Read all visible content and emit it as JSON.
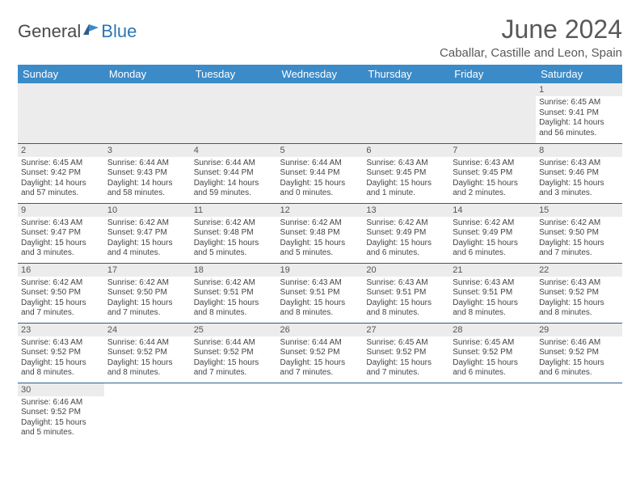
{
  "brand": {
    "text1": "General",
    "text2": "Blue"
  },
  "title": "June 2024",
  "location": "Caballar, Castille and Leon, Spain",
  "colors": {
    "header_bg": "#3b8bc9",
    "header_text": "#ffffff",
    "cell_border": "#2e5c8a",
    "daynum_bg": "#ececec",
    "title_color": "#595959",
    "logo_blue": "#2e75b6"
  },
  "weekdays": [
    "Sunday",
    "Monday",
    "Tuesday",
    "Wednesday",
    "Thursday",
    "Friday",
    "Saturday"
  ],
  "weeks": [
    [
      null,
      null,
      null,
      null,
      null,
      null,
      {
        "n": "1",
        "sr": "6:45 AM",
        "ss": "9:41 PM",
        "dl": "14 hours and 56 minutes."
      }
    ],
    [
      {
        "n": "2",
        "sr": "6:45 AM",
        "ss": "9:42 PM",
        "dl": "14 hours and 57 minutes."
      },
      {
        "n": "3",
        "sr": "6:44 AM",
        "ss": "9:43 PM",
        "dl": "14 hours and 58 minutes."
      },
      {
        "n": "4",
        "sr": "6:44 AM",
        "ss": "9:44 PM",
        "dl": "14 hours and 59 minutes."
      },
      {
        "n": "5",
        "sr": "6:44 AM",
        "ss": "9:44 PM",
        "dl": "15 hours and 0 minutes."
      },
      {
        "n": "6",
        "sr": "6:43 AM",
        "ss": "9:45 PM",
        "dl": "15 hours and 1 minute."
      },
      {
        "n": "7",
        "sr": "6:43 AM",
        "ss": "9:45 PM",
        "dl": "15 hours and 2 minutes."
      },
      {
        "n": "8",
        "sr": "6:43 AM",
        "ss": "9:46 PM",
        "dl": "15 hours and 3 minutes."
      }
    ],
    [
      {
        "n": "9",
        "sr": "6:43 AM",
        "ss": "9:47 PM",
        "dl": "15 hours and 3 minutes."
      },
      {
        "n": "10",
        "sr": "6:42 AM",
        "ss": "9:47 PM",
        "dl": "15 hours and 4 minutes."
      },
      {
        "n": "11",
        "sr": "6:42 AM",
        "ss": "9:48 PM",
        "dl": "15 hours and 5 minutes."
      },
      {
        "n": "12",
        "sr": "6:42 AM",
        "ss": "9:48 PM",
        "dl": "15 hours and 5 minutes."
      },
      {
        "n": "13",
        "sr": "6:42 AM",
        "ss": "9:49 PM",
        "dl": "15 hours and 6 minutes."
      },
      {
        "n": "14",
        "sr": "6:42 AM",
        "ss": "9:49 PM",
        "dl": "15 hours and 6 minutes."
      },
      {
        "n": "15",
        "sr": "6:42 AM",
        "ss": "9:50 PM",
        "dl": "15 hours and 7 minutes."
      }
    ],
    [
      {
        "n": "16",
        "sr": "6:42 AM",
        "ss": "9:50 PM",
        "dl": "15 hours and 7 minutes."
      },
      {
        "n": "17",
        "sr": "6:42 AM",
        "ss": "9:50 PM",
        "dl": "15 hours and 7 minutes."
      },
      {
        "n": "18",
        "sr": "6:42 AM",
        "ss": "9:51 PM",
        "dl": "15 hours and 8 minutes."
      },
      {
        "n": "19",
        "sr": "6:43 AM",
        "ss": "9:51 PM",
        "dl": "15 hours and 8 minutes."
      },
      {
        "n": "20",
        "sr": "6:43 AM",
        "ss": "9:51 PM",
        "dl": "15 hours and 8 minutes."
      },
      {
        "n": "21",
        "sr": "6:43 AM",
        "ss": "9:51 PM",
        "dl": "15 hours and 8 minutes."
      },
      {
        "n": "22",
        "sr": "6:43 AM",
        "ss": "9:52 PM",
        "dl": "15 hours and 8 minutes."
      }
    ],
    [
      {
        "n": "23",
        "sr": "6:43 AM",
        "ss": "9:52 PM",
        "dl": "15 hours and 8 minutes."
      },
      {
        "n": "24",
        "sr": "6:44 AM",
        "ss": "9:52 PM",
        "dl": "15 hours and 8 minutes."
      },
      {
        "n": "25",
        "sr": "6:44 AM",
        "ss": "9:52 PM",
        "dl": "15 hours and 7 minutes."
      },
      {
        "n": "26",
        "sr": "6:44 AM",
        "ss": "9:52 PM",
        "dl": "15 hours and 7 minutes."
      },
      {
        "n": "27",
        "sr": "6:45 AM",
        "ss": "9:52 PM",
        "dl": "15 hours and 7 minutes."
      },
      {
        "n": "28",
        "sr": "6:45 AM",
        "ss": "9:52 PM",
        "dl": "15 hours and 6 minutes."
      },
      {
        "n": "29",
        "sr": "6:46 AM",
        "ss": "9:52 PM",
        "dl": "15 hours and 6 minutes."
      }
    ],
    [
      {
        "n": "30",
        "sr": "6:46 AM",
        "ss": "9:52 PM",
        "dl": "15 hours and 5 minutes."
      },
      null,
      null,
      null,
      null,
      null,
      null
    ]
  ]
}
